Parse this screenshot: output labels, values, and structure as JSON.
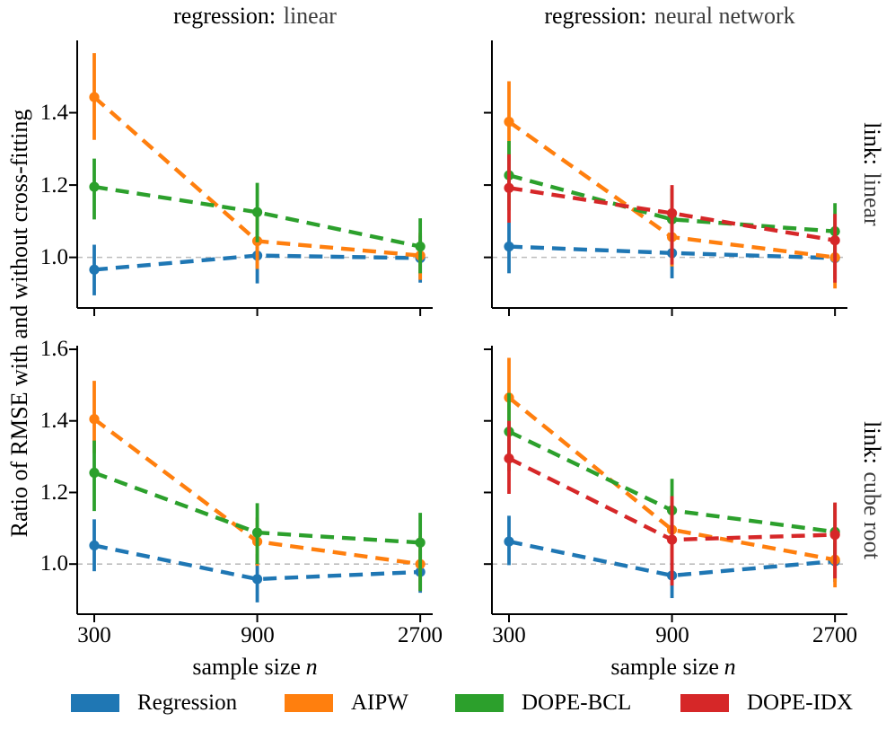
{
  "figure": {
    "ylabel": "Ratio of RMSE with and without cross-fitting",
    "xlabel_prefix": "sample size",
    "xlabel_var": "n",
    "col_titles": [
      {
        "label": "regression:",
        "value": "linear"
      },
      {
        "label": "regression:",
        "value": "neural network"
      }
    ],
    "row_titles": [
      {
        "label": "link:",
        "value": "linear"
      },
      {
        "label": "link:",
        "value": "cube root"
      }
    ],
    "background": "#ffffff",
    "refline_color": "#bdbdbd",
    "spine_color": "#000000"
  },
  "legend": {
    "items": [
      {
        "label": "Regression",
        "color": "#1f77b4"
      },
      {
        "label": "AIPW",
        "color": "#ff7f0e"
      },
      {
        "label": "DOPE-BCL",
        "color": "#2ca02c"
      },
      {
        "label": "DOPE-IDX",
        "color": "#d62728"
      }
    ]
  },
  "chart_data": [
    {
      "type": "line",
      "panel": "top-left",
      "col_facet": "regression: linear",
      "row_facet": "link: linear",
      "x": [
        300,
        900,
        2700
      ],
      "x_scale": "log",
      "xtick_labels": [
        "300",
        "900",
        "2700"
      ],
      "yticks": [
        1.0,
        1.2,
        1.4
      ],
      "ytick_labels": [
        "1.0",
        "1.2",
        "1.4"
      ],
      "ylim": [
        0.86,
        1.6
      ],
      "refline": 1.0,
      "series": [
        {
          "name": "Regression",
          "color": "#1f77b4",
          "values": [
            0.966,
            1.005,
            0.998
          ],
          "err_lo": [
            0.895,
            0.928,
            0.93
          ],
          "err_hi": [
            1.035,
            1.075,
            1.06
          ]
        },
        {
          "name": "AIPW",
          "color": "#ff7f0e",
          "values": [
            1.443,
            1.045,
            1.005
          ],
          "err_lo": [
            1.325,
            0.968,
            0.938
          ],
          "err_hi": [
            1.565,
            1.118,
            1.068
          ]
        },
        {
          "name": "DOPE-BCL",
          "color": "#2ca02c",
          "values": [
            1.195,
            1.125,
            1.03
          ],
          "err_lo": [
            1.105,
            1.042,
            0.956
          ],
          "err_hi": [
            1.273,
            1.206,
            1.108
          ]
        }
      ]
    },
    {
      "type": "line",
      "panel": "top-right",
      "col_facet": "regression: neural network",
      "row_facet": "link: linear",
      "x": [
        300,
        900,
        2700
      ],
      "x_scale": "log",
      "xtick_labels": [
        "300",
        "900",
        "2700"
      ],
      "yticks": [
        1.0,
        1.2,
        1.4
      ],
      "ytick_labels": [],
      "ylim": [
        0.86,
        1.6
      ],
      "refline": 1.0,
      "series": [
        {
          "name": "Regression",
          "color": "#1f77b4",
          "values": [
            1.03,
            1.012,
            0.998
          ],
          "err_lo": [
            0.956,
            0.942,
            0.94
          ],
          "err_hi": [
            1.096,
            1.08,
            1.052
          ]
        },
        {
          "name": "AIPW",
          "color": "#ff7f0e",
          "values": [
            1.375,
            1.056,
            1.0
          ],
          "err_lo": [
            1.268,
            0.975,
            0.914
          ],
          "err_hi": [
            1.487,
            1.136,
            1.086
          ]
        },
        {
          "name": "DOPE-BCL",
          "color": "#2ca02c",
          "values": [
            1.227,
            1.105,
            1.072
          ],
          "err_lo": [
            1.13,
            1.02,
            0.998
          ],
          "err_hi": [
            1.322,
            1.19,
            1.15
          ]
        },
        {
          "name": "DOPE-IDX",
          "color": "#d62728",
          "values": [
            1.192,
            1.122,
            1.047
          ],
          "err_lo": [
            1.096,
            0.98,
            0.93
          ],
          "err_hi": [
            1.285,
            1.2,
            1.12
          ]
        }
      ]
    },
    {
      "type": "line",
      "panel": "bottom-left",
      "col_facet": "regression: linear",
      "row_facet": "link: cube root",
      "x": [
        300,
        900,
        2700
      ],
      "x_scale": "log",
      "xtick_labels": [
        "300",
        "900",
        "2700"
      ],
      "yticks": [
        1.0,
        1.2,
        1.4,
        1.6
      ],
      "ytick_labels": [
        "1.0",
        "1.2",
        "1.4",
        "1.6"
      ],
      "ylim": [
        0.86,
        1.61
      ],
      "refline": 1.0,
      "series": [
        {
          "name": "Regression",
          "color": "#1f77b4",
          "values": [
            1.052,
            0.958,
            0.978
          ],
          "err_lo": [
            0.98,
            0.893,
            0.92
          ],
          "err_hi": [
            1.125,
            1.028,
            1.04
          ]
        },
        {
          "name": "AIPW",
          "color": "#ff7f0e",
          "values": [
            1.405,
            1.063,
            1.0
          ],
          "err_lo": [
            1.31,
            0.995,
            0.925
          ],
          "err_hi": [
            1.512,
            1.13,
            1.078
          ]
        },
        {
          "name": "DOPE-BCL",
          "color": "#2ca02c",
          "values": [
            1.255,
            1.088,
            1.06
          ],
          "err_lo": [
            1.148,
            1.0,
            0.925
          ],
          "err_hi": [
            1.345,
            1.17,
            1.143
          ]
        }
      ]
    },
    {
      "type": "line",
      "panel": "bottom-right",
      "col_facet": "regression: neural network",
      "row_facet": "link: cube root",
      "x": [
        300,
        900,
        2700
      ],
      "x_scale": "log",
      "xtick_labels": [
        "300",
        "900",
        "2700"
      ],
      "yticks": [
        1.0,
        1.2,
        1.4,
        1.6
      ],
      "ytick_labels": [],
      "ylim": [
        0.86,
        1.61
      ],
      "refline": 1.0,
      "series": [
        {
          "name": "Regression",
          "color": "#1f77b4",
          "values": [
            1.063,
            0.968,
            1.008
          ],
          "err_lo": [
            0.997,
            0.905,
            0.95
          ],
          "err_hi": [
            1.135,
            1.044,
            1.06
          ]
        },
        {
          "name": "AIPW",
          "color": "#ff7f0e",
          "values": [
            1.465,
            1.096,
            1.012
          ],
          "err_lo": [
            1.358,
            1.02,
            0.935
          ],
          "err_hi": [
            1.576,
            1.17,
            1.09
          ]
        },
        {
          "name": "DOPE-BCL",
          "color": "#2ca02c",
          "values": [
            1.37,
            1.15,
            1.09
          ],
          "err_lo": [
            1.26,
            1.06,
            1.0
          ],
          "err_hi": [
            1.478,
            1.238,
            1.17
          ]
        },
        {
          "name": "DOPE-IDX",
          "color": "#d62728",
          "values": [
            1.295,
            1.068,
            1.082
          ],
          "err_lo": [
            1.196,
            0.94,
            0.96
          ],
          "err_hi": [
            1.4,
            1.19,
            1.172
          ]
        }
      ]
    }
  ]
}
